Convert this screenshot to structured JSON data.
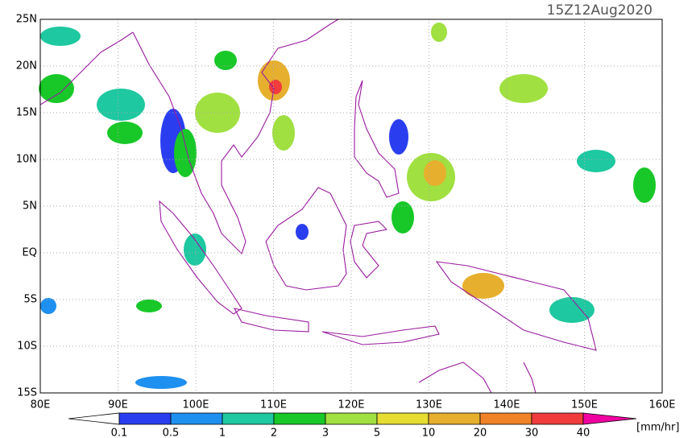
{
  "map": {
    "title": "15Z12Aug2020",
    "lon_labels": [
      "80E",
      "90E",
      "100E",
      "110E",
      "120E",
      "130E",
      "140E",
      "150E",
      "160E"
    ],
    "lat_labels": [
      "25N",
      "20N",
      "15N",
      "10N",
      "5N",
      "EQ",
      "5S",
      "10S",
      "15S"
    ],
    "colorbar": {
      "labels": [
        0.1,
        0.5,
        1,
        2,
        3,
        5,
        10,
        20,
        30,
        40
      ],
      "colors": [
        "#ffffff",
        "#2a3ef0",
        "#1e90f0",
        "#1ec8a0",
        "#18c828",
        "#a0e040",
        "#e6dc32",
        "#e6af2d",
        "#f08228",
        "#f03c3c",
        "#f000a0"
      ],
      "unit": "[mm/hr]"
    },
    "coast_color": "#9a1aa0"
  }
}
